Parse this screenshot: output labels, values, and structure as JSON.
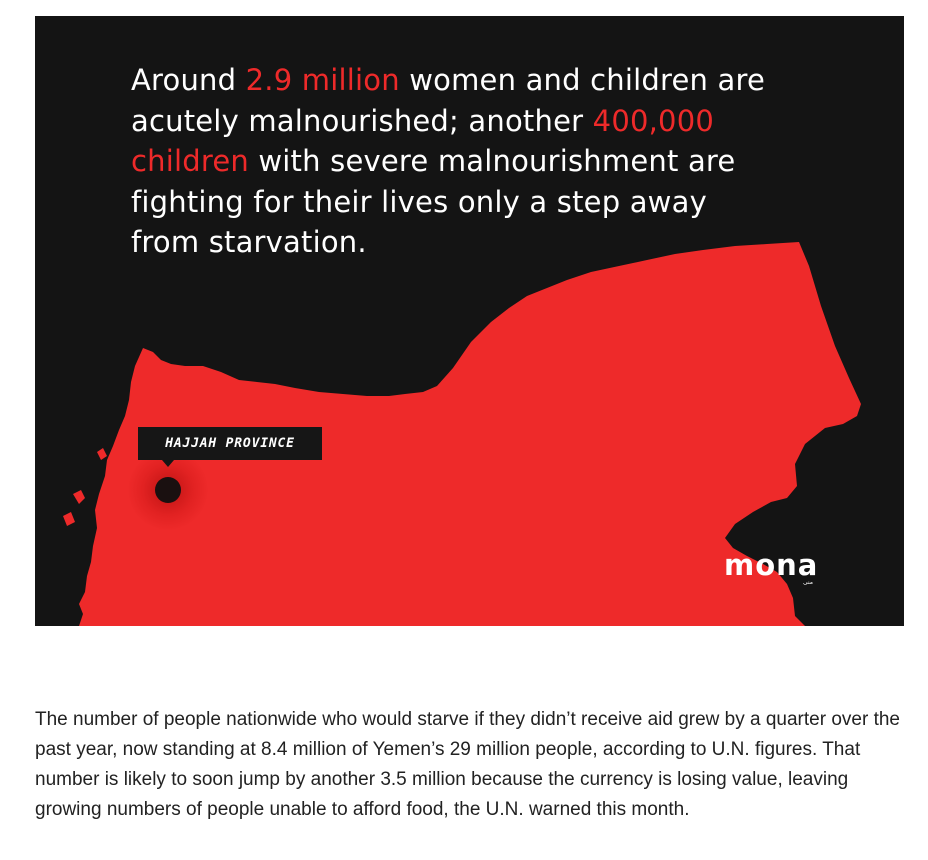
{
  "infographic": {
    "headline": {
      "part1": "Around ",
      "highlight1": "2.9 million",
      "part2": " women and children are",
      "part3": "acutely malnourished; another ",
      "highlight2": "400,000",
      "highlight3": "children",
      "part4": " with severe malnourishment are",
      "part5": "fighting for their lives only a step away",
      "part6": "from starvation."
    },
    "map_label": "HAJJAH PROVINCE",
    "logo_text": "mona",
    "logo_subtext": "منى",
    "colors": {
      "background": "#141414",
      "map_fill": "#ee2a2a",
      "highlight_text": "#ee2a2a",
      "text": "#ffffff"
    }
  },
  "article": {
    "paragraph": "The number of people nationwide who would starve if they didn’t receive aid grew by a quarter over the past year, now standing at 8.4 million of Yemen’s 29 million people, according to U.N. figures. That number is likely to soon jump by another 3.5 million because the currency is losing value, leaving growing numbers of people unable to afford food, the U.N. warned this month."
  }
}
